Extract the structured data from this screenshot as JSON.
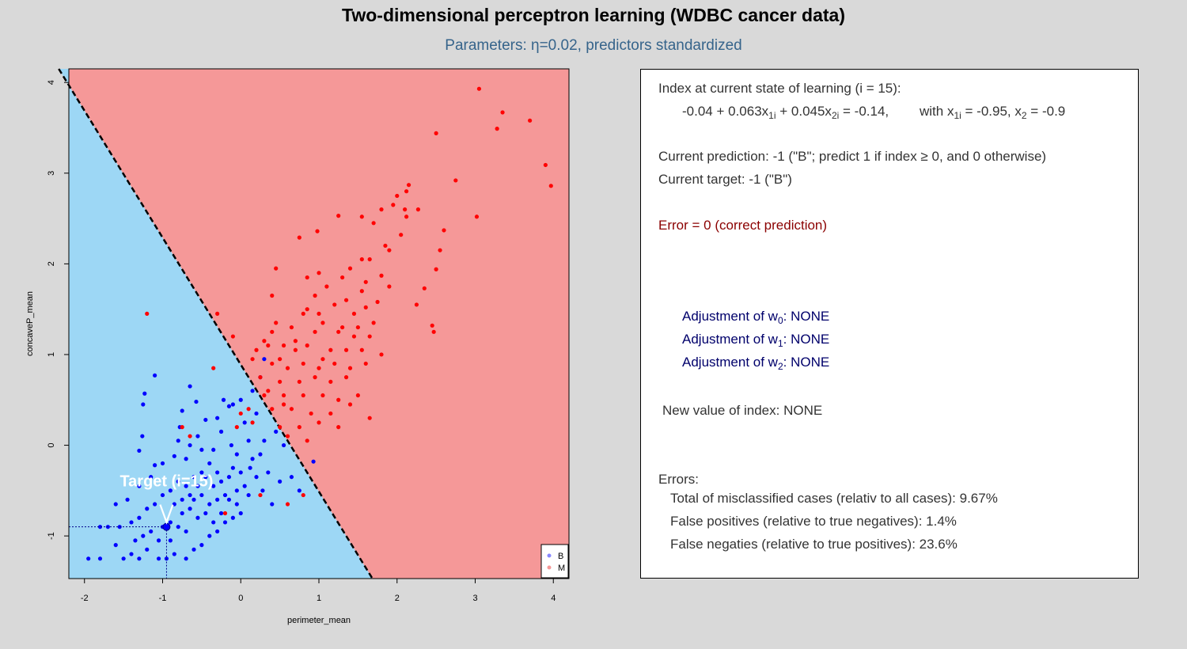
{
  "title": "Two-dimensional perceptron learning (WDBC cancer data)",
  "subtitle": "Parameters: η=0.02, predictors standardized",
  "colors": {
    "region_benign": "#9dd7f5",
    "region_malignant": "#f59898",
    "point_benign": "#0000ff",
    "point_malignant": "#ff0000",
    "panel_bg": "#ffffff",
    "background": "#d9d9d9"
  },
  "chart_data": {
    "type": "scatter",
    "xlabel": "perimeter_mean",
    "ylabel": "concaveP_mean",
    "xlim": [
      -2.2,
      4.2
    ],
    "ylim": [
      -1.47,
      4.15
    ],
    "x_ticks": [
      "-2",
      "-1",
      "0",
      "1",
      "2",
      "3",
      "4"
    ],
    "y_ticks": [
      "-1",
      "0",
      "1",
      "2",
      "3",
      "4"
    ],
    "decision_boundary": {
      "w0": -0.04,
      "w1": 0.063,
      "w2": 0.045,
      "style": "dashed"
    },
    "target": {
      "label": "Target (i=15)",
      "x": -0.95,
      "y": -0.9
    },
    "legend": {
      "position": "bottom-right",
      "entries": [
        "B",
        "M"
      ]
    },
    "series": [
      {
        "name": "B",
        "color": "#0000ff",
        "points": [
          [
            -1.1,
            0.77
          ],
          [
            -1.23,
            0.57
          ],
          [
            -1.25,
            0.45
          ],
          [
            -1.26,
            0.1
          ],
          [
            -1.3,
            -0.06
          ],
          [
            -1.1,
            -0.22
          ],
          [
            -0.65,
            0.65
          ],
          [
            -0.57,
            0.48
          ],
          [
            -0.75,
            0.38
          ],
          [
            -0.78,
            0.2
          ],
          [
            -0.8,
            0.05
          ],
          [
            -0.55,
            0.1
          ],
          [
            -0.45,
            0.28
          ],
          [
            -0.3,
            0.3
          ],
          [
            -0.22,
            0.5
          ],
          [
            -0.15,
            0.43
          ],
          [
            -0.1,
            0.45
          ],
          [
            0.0,
            0.5
          ],
          [
            0.15,
            0.6
          ],
          [
            0.25,
            0.75
          ],
          [
            0.3,
            0.95
          ],
          [
            0.2,
            0.35
          ],
          [
            0.05,
            0.25
          ],
          [
            0.1,
            0.05
          ],
          [
            0.25,
            -0.1
          ],
          [
            0.3,
            0.05
          ],
          [
            -0.05,
            -0.1
          ],
          [
            -0.12,
            0.0
          ],
          [
            -0.25,
            0.15
          ],
          [
            -0.35,
            -0.05
          ],
          [
            0.45,
            0.15
          ],
          [
            0.55,
            0.0
          ],
          [
            0.65,
            -0.35
          ],
          [
            0.75,
            -0.5
          ],
          [
            0.93,
            -0.18
          ],
          [
            0.4,
            -0.65
          ],
          [
            0.28,
            -0.5
          ],
          [
            0.2,
            -0.35
          ],
          [
            0.12,
            -0.25
          ],
          [
            -0.5,
            -0.05
          ],
          [
            -0.65,
            0.0
          ],
          [
            -0.7,
            -0.15
          ],
          [
            -0.85,
            -0.12
          ],
          [
            -1.0,
            -0.2
          ],
          [
            -1.15,
            -0.35
          ],
          [
            -1.3,
            -0.45
          ],
          [
            -1.45,
            -0.6
          ],
          [
            -1.6,
            -0.65
          ],
          [
            -1.55,
            -0.9
          ],
          [
            -1.7,
            -0.9
          ],
          [
            -1.8,
            -0.9
          ],
          [
            -1.6,
            -1.1
          ],
          [
            -1.5,
            -1.25
          ],
          [
            -1.8,
            -1.25
          ],
          [
            -1.95,
            -1.25
          ],
          [
            -1.4,
            -1.2
          ],
          [
            -1.3,
            -1.25
          ],
          [
            -1.2,
            -1.15
          ],
          [
            -1.05,
            -1.25
          ],
          [
            -0.95,
            -1.25
          ],
          [
            -0.85,
            -1.2
          ],
          [
            -0.7,
            -1.25
          ],
          [
            -0.6,
            -1.15
          ],
          [
            -0.5,
            -1.1
          ],
          [
            -0.4,
            -1.0
          ],
          [
            -0.3,
            -0.95
          ],
          [
            -0.2,
            -0.85
          ],
          [
            -0.1,
            -0.8
          ],
          [
            0.0,
            -0.75
          ],
          [
            -0.15,
            -0.6
          ],
          [
            -0.05,
            -0.5
          ],
          [
            0.05,
            -0.45
          ],
          [
            0.1,
            -0.55
          ],
          [
            0.0,
            -0.3
          ],
          [
            -0.1,
            -0.25
          ],
          [
            -0.3,
            -0.3
          ],
          [
            -0.4,
            -0.2
          ],
          [
            -0.5,
            -0.3
          ],
          [
            -0.6,
            -0.35
          ],
          [
            -0.7,
            -0.45
          ],
          [
            -0.8,
            -0.4
          ],
          [
            -0.9,
            -0.5
          ],
          [
            -1.0,
            -0.55
          ],
          [
            -1.1,
            -0.65
          ],
          [
            -1.2,
            -0.7
          ],
          [
            -1.3,
            -0.8
          ],
          [
            -1.4,
            -0.85
          ],
          [
            -1.0,
            -0.9
          ],
          [
            -0.9,
            -0.85
          ],
          [
            -0.8,
            -0.9
          ],
          [
            -0.7,
            -0.95
          ],
          [
            -0.95,
            -0.9
          ],
          [
            -0.6,
            -0.6
          ],
          [
            -0.5,
            -0.55
          ],
          [
            -0.4,
            -0.65
          ],
          [
            -0.3,
            -0.6
          ],
          [
            -0.2,
            -0.55
          ],
          [
            -0.45,
            -0.75
          ],
          [
            -0.55,
            -0.8
          ],
          [
            -0.65,
            -0.7
          ],
          [
            -0.75,
            -0.75
          ],
          [
            -0.85,
            -0.65
          ],
          [
            -0.25,
            -0.4
          ],
          [
            -0.35,
            -0.45
          ],
          [
            -0.15,
            -0.35
          ],
          [
            -0.55,
            -0.45
          ],
          [
            -0.65,
            -0.55
          ],
          [
            -0.75,
            -0.6
          ],
          [
            -0.45,
            -0.35
          ],
          [
            -0.25,
            -0.75
          ],
          [
            -0.35,
            -0.85
          ],
          [
            -1.15,
            -0.95
          ],
          [
            -1.25,
            -1.0
          ],
          [
            -1.35,
            -1.05
          ],
          [
            -0.05,
            -0.65
          ],
          [
            0.15,
            -0.15
          ],
          [
            0.35,
            -0.3
          ],
          [
            0.5,
            -0.4
          ],
          [
            -0.9,
            -1.05
          ],
          [
            -1.05,
            -1.05
          ]
        ]
      },
      {
        "name": "M",
        "color": "#ff0000",
        "points": [
          [
            3.05,
            3.93
          ],
          [
            3.35,
            3.67
          ],
          [
            3.28,
            3.49
          ],
          [
            3.7,
            3.58
          ],
          [
            2.5,
            3.44
          ],
          [
            3.9,
            3.09
          ],
          [
            3.97,
            2.86
          ],
          [
            2.75,
            2.92
          ],
          [
            2.15,
            2.87
          ],
          [
            2.12,
            2.8
          ],
          [
            2.0,
            2.75
          ],
          [
            1.95,
            2.65
          ],
          [
            2.27,
            2.6
          ],
          [
            2.1,
            2.6
          ],
          [
            2.12,
            2.52
          ],
          [
            3.02,
            2.52
          ],
          [
            1.55,
            2.52
          ],
          [
            1.8,
            2.6
          ],
          [
            1.25,
            2.53
          ],
          [
            2.6,
            2.37
          ],
          [
            2.05,
            2.32
          ],
          [
            0.98,
            2.36
          ],
          [
            0.75,
            2.29
          ],
          [
            1.85,
            2.2
          ],
          [
            1.65,
            2.05
          ],
          [
            1.55,
            2.05
          ],
          [
            1.9,
            2.15
          ],
          [
            1.3,
            1.85
          ],
          [
            1.0,
            1.9
          ],
          [
            0.45,
            1.95
          ],
          [
            1.4,
            1.95
          ],
          [
            1.8,
            1.87
          ],
          [
            2.5,
            1.94
          ],
          [
            2.35,
            1.73
          ],
          [
            0.85,
            1.85
          ],
          [
            1.6,
            1.8
          ],
          [
            1.35,
            1.6
          ],
          [
            1.55,
            1.7
          ],
          [
            1.75,
            1.58
          ],
          [
            0.4,
            1.65
          ],
          [
            1.1,
            1.75
          ],
          [
            0.85,
            1.5
          ],
          [
            1.2,
            1.55
          ],
          [
            2.25,
            1.55
          ],
          [
            1.45,
            1.45
          ],
          [
            1.6,
            1.52
          ],
          [
            1.0,
            1.45
          ],
          [
            0.8,
            1.45
          ],
          [
            0.45,
            1.35
          ],
          [
            0.65,
            1.3
          ],
          [
            1.05,
            1.35
          ],
          [
            1.3,
            1.3
          ],
          [
            1.5,
            1.3
          ],
          [
            1.7,
            1.35
          ],
          [
            0.4,
            1.25
          ],
          [
            0.95,
            1.25
          ],
          [
            1.25,
            1.25
          ],
          [
            1.45,
            1.2
          ],
          [
            1.65,
            1.2
          ],
          [
            2.45,
            1.32
          ],
          [
            2.47,
            1.25
          ],
          [
            0.2,
            1.05
          ],
          [
            0.35,
            1.1
          ],
          [
            0.55,
            1.1
          ],
          [
            0.7,
            1.15
          ],
          [
            0.85,
            1.1
          ],
          [
            1.15,
            1.05
          ],
          [
            1.35,
            1.05
          ],
          [
            1.55,
            1.05
          ],
          [
            1.8,
            1.0
          ],
          [
            0.15,
            0.95
          ],
          [
            0.4,
            0.9
          ],
          [
            0.6,
            0.85
          ],
          [
            0.8,
            0.9
          ],
          [
            1.0,
            0.85
          ],
          [
            1.2,
            0.9
          ],
          [
            1.4,
            0.85
          ],
          [
            1.6,
            0.9
          ],
          [
            0.25,
            0.75
          ],
          [
            0.5,
            0.7
          ],
          [
            0.75,
            0.7
          ],
          [
            0.95,
            0.75
          ],
          [
            1.15,
            0.7
          ],
          [
            1.35,
            0.75
          ],
          [
            0.3,
            0.55
          ],
          [
            0.55,
            0.55
          ],
          [
            0.8,
            0.55
          ],
          [
            1.05,
            0.55
          ],
          [
            1.25,
            0.5
          ],
          [
            1.5,
            0.55
          ],
          [
            0.4,
            0.4
          ],
          [
            0.65,
            0.4
          ],
          [
            0.9,
            0.35
          ],
          [
            1.15,
            0.35
          ],
          [
            1.4,
            0.45
          ],
          [
            1.65,
            0.3
          ],
          [
            0.5,
            0.2
          ],
          [
            0.75,
            0.2
          ],
          [
            1.0,
            0.25
          ],
          [
            1.25,
            0.2
          ],
          [
            0.6,
            0.1
          ],
          [
            0.85,
            0.05
          ],
          [
            -1.2,
            1.45
          ],
          [
            -0.3,
            1.45
          ],
          [
            -0.35,
            0.85
          ],
          [
            -0.75,
            0.2
          ],
          [
            -0.65,
            0.1
          ],
          [
            0.15,
            0.25
          ],
          [
            0.1,
            0.4
          ],
          [
            0.0,
            0.35
          ],
          [
            -0.05,
            0.2
          ],
          [
            0.35,
            0.6
          ],
          [
            0.55,
            0.45
          ],
          [
            0.8,
            -0.55
          ],
          [
            -0.2,
            -0.75
          ],
          [
            0.6,
            -0.65
          ],
          [
            0.25,
            -0.55
          ],
          [
            1.05,
            0.95
          ],
          [
            0.3,
            1.15
          ],
          [
            -0.1,
            1.2
          ],
          [
            0.7,
            1.05
          ],
          [
            0.5,
            0.95
          ],
          [
            1.9,
            1.75
          ],
          [
            1.7,
            2.45
          ],
          [
            0.95,
            1.65
          ],
          [
            2.55,
            2.15
          ]
        ]
      }
    ]
  },
  "panel": {
    "line1": "Index at current state of learning (i = 15):",
    "line2_expr_a": "-0.04 + 0.063x",
    "line2_sub_a": "1i",
    "line2_expr_b": " + 0.045x",
    "line2_sub_b": "2i",
    "line2_expr_c": " = -0.14,",
    "line2_with": "with  x",
    "line2_with_sub": "1i",
    "line2_with_val": " = -0.95,  x",
    "line2_with_sub2": "2",
    "line2_with_val2": " = -0.9",
    "prediction": "Current prediction: -1 (\"B\"; predict 1 if index ≥ 0, and 0 otherwise)",
    "target": "Current target: -1 (\"B\")",
    "error": "Error = 0 (correct prediction)",
    "adj_prefix": "Adjustment of w",
    "adj_suffix": ": NONE",
    "adj_subs": [
      "0",
      "1",
      "2"
    ],
    "new_index": "New value of index: NONE",
    "errors_heading": "Errors:",
    "total_misclassified": "Total of misclassified cases (relativ to all cases): 9.67%",
    "false_positives": "False positives (relative to true negatives): 1.4%",
    "false_negatives": "False negaties (relative to true positives): 23.6%"
  }
}
